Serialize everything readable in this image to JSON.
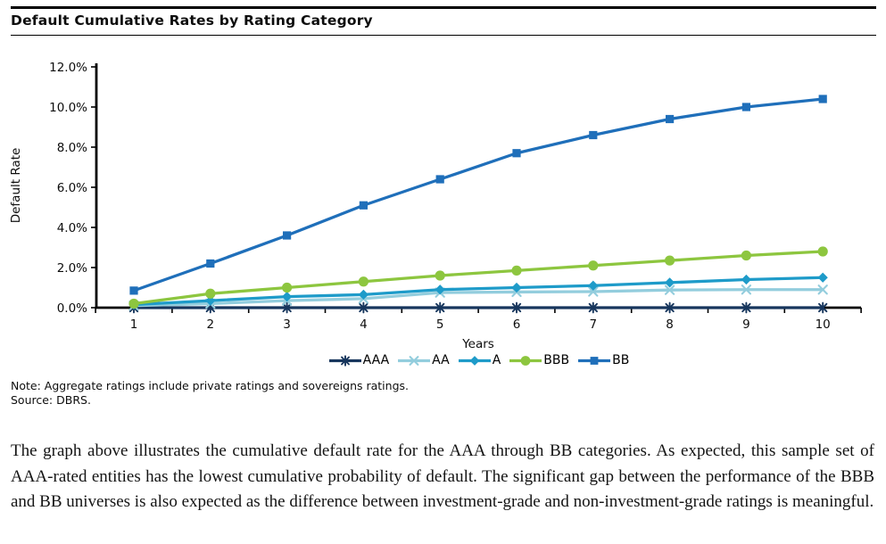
{
  "page": {
    "title": "Default Cumulative Rates by Rating Category"
  },
  "chart_data": {
    "type": "line",
    "title": "Default Cumulative Rates by Rating Category",
    "xlabel": "Years",
    "ylabel": "Default Rate",
    "x": [
      1,
      2,
      3,
      4,
      5,
      6,
      7,
      8,
      9,
      10
    ],
    "y_ticks": [
      "0.0%",
      "2.0%",
      "4.0%",
      "6.0%",
      "8.0%",
      "10.0%",
      "12.0%"
    ],
    "ylim": [
      0,
      12
    ],
    "grid": false,
    "legend_position": "bottom",
    "series": [
      {
        "name": "AAA",
        "color": "#17365D",
        "marker": "star",
        "values": [
          0.0,
          0.0,
          0.0,
          0.0,
          0.0,
          0.0,
          0.0,
          0.0,
          0.0,
          0.0
        ]
      },
      {
        "name": "AA",
        "color": "#93CDDD",
        "marker": "x",
        "values": [
          0.1,
          0.2,
          0.35,
          0.45,
          0.75,
          0.78,
          0.8,
          0.88,
          0.9,
          0.9
        ]
      },
      {
        "name": "A",
        "color": "#1E9BC9",
        "marker": "diamond",
        "values": [
          0.15,
          0.35,
          0.55,
          0.65,
          0.9,
          1.0,
          1.1,
          1.25,
          1.4,
          1.5
        ]
      },
      {
        "name": "BBB",
        "color": "#8DC63F",
        "marker": "circle",
        "values": [
          0.2,
          0.7,
          1.0,
          1.3,
          1.6,
          1.85,
          2.1,
          2.35,
          2.6,
          2.8
        ]
      },
      {
        "name": "BB",
        "color": "#1F6FBA",
        "marker": "square",
        "values": [
          0.85,
          2.2,
          3.6,
          5.1,
          6.4,
          7.7,
          8.6,
          9.4,
          10.0,
          10.4
        ]
      }
    ]
  },
  "notes": {
    "note": "Note: Aggregate ratings include private ratings and sovereigns ratings.",
    "source": "Source: DBRS."
  },
  "paragraph": "The graph above illustrates the cumulative default rate for the AAA through BB categories. As expected, this sample set of AAA-rated entities has the lowest cumulative probability of default. The significant gap between the performance of the BBB and BB universes is also expected as the difference between investment-grade and non-investment-grade ratings is meaningful."
}
